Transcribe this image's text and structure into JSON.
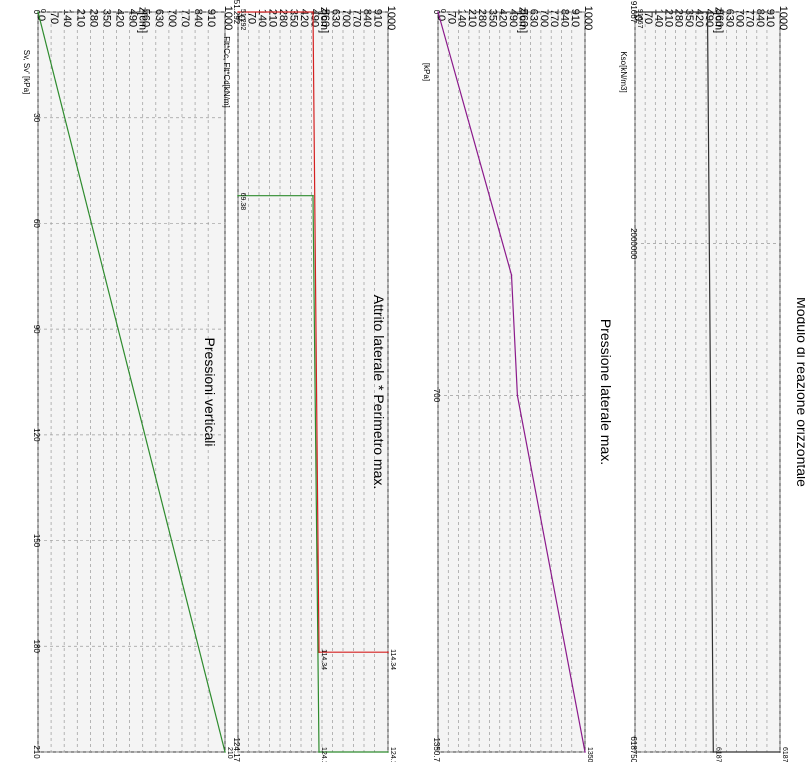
{
  "chart_data": [
    {
      "type": "line",
      "title": "Pressioni verticali",
      "xlabel": "Sv, Sv' [kPa]",
      "ylabel": "z[cm]",
      "xlim": [
        0,
        210
      ],
      "ylim": [
        0,
        1000
      ],
      "x_ticks": [
        "0",
        "30",
        "60",
        "90",
        "120",
        "150",
        "180",
        "210"
      ],
      "y_ticks": [
        "0",
        "70",
        "140",
        "210",
        "280",
        "350",
        "420",
        "490",
        "560",
        "630",
        "700",
        "770",
        "840",
        "910",
        "1000"
      ],
      "grid": true,
      "series": [
        {
          "color": "#2e8b2e",
          "x": [
            0,
            210
          ],
          "y": [
            0,
            1000
          ]
        }
      ],
      "annotations": [
        {
          "text": "0",
          "x": 0,
          "y": 0
        },
        {
          "text": "210",
          "x": 210,
          "y": 1000
        }
      ]
    },
    {
      "type": "line",
      "title": "Attrito laterale * Perimetro max.",
      "xlabel": "Flt*Cc, Flt*Cd[kN/m]",
      "ylabel": "z[cm]",
      "xlim": [
        51.292,
        124.174
      ],
      "ylim": [
        0,
        1000
      ],
      "x_ticks": [
        "51.292",
        "124.174"
      ],
      "y_ticks": [
        "0",
        "70",
        "140",
        "210",
        "280",
        "350",
        "420",
        "490",
        "560",
        "630",
        "700",
        "770",
        "840",
        "910",
        "1000"
      ],
      "grid": true,
      "series": [
        {
          "color": "#d42020",
          "x": [
            51.292,
            51.292,
            114.34,
            114.34
          ],
          "y": [
            0,
            500,
            540,
            1000
          ]
        },
        {
          "color": "#2e8b2e",
          "x": [
            69.38,
            69.38,
            124.174,
            124.174
          ],
          "y": [
            0,
            500,
            540,
            1000
          ]
        }
      ],
      "annotations": [
        {
          "text": "51.292",
          "x": 51.292,
          "y": 0
        },
        {
          "text": "69.38",
          "x": 69.38,
          "y": 0
        },
        {
          "text": "124.174",
          "x": 124.174,
          "y": 540
        },
        {
          "text": "114.34",
          "x": 114.34,
          "y": 540
        },
        {
          "text": "124.174",
          "x": 124.174,
          "y": 1000
        },
        {
          "text": "114.34",
          "x": 114.34,
          "y": 1000
        }
      ]
    },
    {
      "type": "line",
      "title": "Pressione laterale max.",
      "xlabel": "[kPa]",
      "ylabel": "z[cm]",
      "xlim": [
        0,
        1350.73
      ],
      "ylim": [
        0,
        1000
      ],
      "x_ticks": [
        "0",
        "700",
        "1350.73"
      ],
      "y_ticks": [
        "0",
        "70",
        "140",
        "210",
        "280",
        "350",
        "420",
        "490",
        "560",
        "630",
        "700",
        "770",
        "840",
        "910",
        "1000"
      ],
      "grid": true,
      "series": [
        {
          "color": "#8b1a8b",
          "x": [
            0,
            480,
            700,
            1350.73
          ],
          "y": [
            0,
            500,
            540,
            1000
          ]
        }
      ],
      "annotations": [
        {
          "text": "0",
          "x": 0,
          "y": 0
        },
        {
          "text": "1350.7",
          "x": 1350.73,
          "y": 1000
        }
      ]
    },
    {
      "type": "line",
      "title": "Modulo di reazione orizzontale",
      "xlabel": "Kso[kN/m3]",
      "ylabel": "z[cm]",
      "xlim": [
        91667,
        6187500
      ],
      "ylim": [
        0,
        1000
      ],
      "x_ticks": [
        "91667",
        "2000000",
        "6187500"
      ],
      "y_ticks": [
        "0",
        "70",
        "140",
        "210",
        "280",
        "350",
        "420",
        "490",
        "560",
        "630",
        "700",
        "770",
        "840",
        "910",
        "1000"
      ],
      "grid": true,
      "series": [
        {
          "color": "#303030",
          "x": [
            91667,
            91667,
            6187500,
            6187500
          ],
          "y": [
            0,
            500,
            540,
            1000
          ]
        }
      ],
      "annotations": [
        {
          "text": "91667",
          "x": 91667,
          "y": 0
        },
        {
          "text": "6187500",
          "x": 6187500,
          "y": 540
        },
        {
          "text": "6187500",
          "x": 6187500,
          "y": 1000
        }
      ]
    }
  ]
}
